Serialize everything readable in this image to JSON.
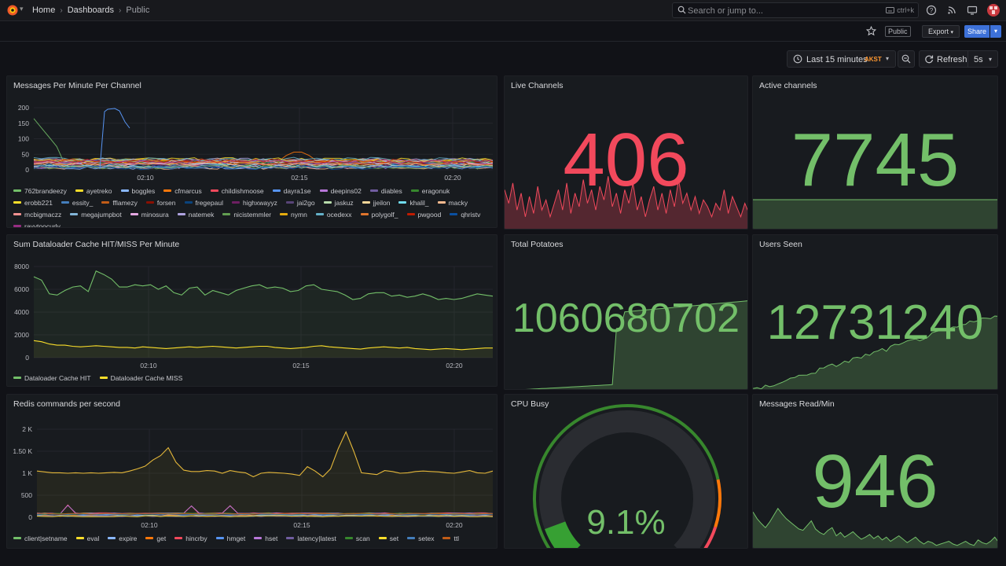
{
  "topbar": {
    "crumbs": [
      "Home",
      "Dashboards",
      "Public"
    ],
    "search_placeholder": "Search or jump to...",
    "search_shortcut": "ctrl+k"
  },
  "toolbar": {
    "public_tag": "Public",
    "export_label": "Export",
    "share_label": "Share"
  },
  "time": {
    "range_label": "Last 15 minutes",
    "timezone": "AKST",
    "refresh_label": "Refresh",
    "refresh_interval": "5s"
  },
  "panels": {
    "messages_per_minute": {
      "title": "Messages Per Minute Per Channel",
      "y_ticks": [
        "200",
        "150",
        "100",
        "50",
        "0"
      ],
      "x_ticks": [
        "02:10",
        "02:15",
        "02:20"
      ],
      "legend": [
        {
          "name": "762brandeezy",
          "color": "#73bf69"
        },
        {
          "name": "ayetreko",
          "color": "#fade2a"
        },
        {
          "name": "boggles",
          "color": "#8ab8ff"
        },
        {
          "name": "cfmarcus",
          "color": "#ff780a"
        },
        {
          "name": "childishmoose",
          "color": "#f2495c"
        },
        {
          "name": "dayra1se",
          "color": "#5794f2"
        },
        {
          "name": "deepins02",
          "color": "#b877d9"
        },
        {
          "name": "diables",
          "color": "#705da0"
        },
        {
          "name": "eragonuk",
          "color": "#37872d"
        },
        {
          "name": "erobb221",
          "color": "#fade2a"
        },
        {
          "name": "essity_",
          "color": "#447ebc"
        },
        {
          "name": "fflamezy",
          "color": "#c15c17"
        },
        {
          "name": "forsen",
          "color": "#890f02"
        },
        {
          "name": "fregepaul",
          "color": "#0a437c"
        },
        {
          "name": "highxwayyz",
          "color": "#6d1f62"
        },
        {
          "name": "jai2go",
          "color": "#584477"
        },
        {
          "name": "jaskuz",
          "color": "#b7dbab"
        },
        {
          "name": "jjeilon",
          "color": "#f4d598"
        },
        {
          "name": "khalil_",
          "color": "#70dbed"
        },
        {
          "name": "macky",
          "color": "#f9ba8f"
        },
        {
          "name": "mcbigmaczz",
          "color": "#f29191"
        },
        {
          "name": "megajumpbot",
          "color": "#82b5d8"
        },
        {
          "name": "minosura",
          "color": "#e5a8e2"
        },
        {
          "name": "natemek",
          "color": "#aea2e0"
        },
        {
          "name": "nicistemmler",
          "color": "#629e51"
        },
        {
          "name": "nymn",
          "color": "#e5ac0e"
        },
        {
          "name": "ocedexx",
          "color": "#64b0c8"
        },
        {
          "name": "polygolf_",
          "color": "#e0752d"
        },
        {
          "name": "pwgood",
          "color": "#bf1b00"
        },
        {
          "name": "qhristv",
          "color": "#0a50a1"
        },
        {
          "name": "rayytoocurly",
          "color": "#962d82"
        }
      ]
    },
    "live_channels": {
      "title": "Live Channels",
      "value": "406",
      "color": "#f2495c"
    },
    "active_channels": {
      "title": "Active channels",
      "value": "7745",
      "color": "#73bf69"
    },
    "dataloader": {
      "title": "Sum Dataloader Cache HIT/MISS Per Minute",
      "y_ticks": [
        "8000",
        "6000",
        "4000",
        "2000",
        "0"
      ],
      "x_ticks": [
        "02:10",
        "02:15",
        "02:20"
      ],
      "legend": [
        {
          "name": "Dataloader Cache HIT",
          "color": "#73bf69"
        },
        {
          "name": "Dataloader Cache MISS",
          "color": "#fade2a"
        }
      ]
    },
    "total_potatoes": {
      "title": "Total Potatoes",
      "value": "1060680702",
      "color": "#73bf69"
    },
    "users_seen": {
      "title": "Users Seen",
      "value": "12731240",
      "color": "#73bf69"
    },
    "redis": {
      "title": "Redis commands per second",
      "y_ticks": [
        "2 K",
        "1.50 K",
        "1 K",
        "500",
        "0"
      ],
      "x_ticks": [
        "02:10",
        "02:15",
        "02:20"
      ],
      "legend": [
        {
          "name": "client|setname",
          "color": "#73bf69"
        },
        {
          "name": "eval",
          "color": "#fade2a"
        },
        {
          "name": "expire",
          "color": "#8ab8ff"
        },
        {
          "name": "get",
          "color": "#ff780a"
        },
        {
          "name": "hincrby",
          "color": "#f2495c"
        },
        {
          "name": "hmget",
          "color": "#5794f2"
        },
        {
          "name": "hset",
          "color": "#b877d9"
        },
        {
          "name": "latency|latest",
          "color": "#705da0"
        },
        {
          "name": "scan",
          "color": "#37872d"
        },
        {
          "name": "set",
          "color": "#fade2a"
        },
        {
          "name": "setex",
          "color": "#447ebc"
        },
        {
          "name": "ttl",
          "color": "#c15c17"
        }
      ]
    },
    "cpu_busy": {
      "title": "CPU Busy",
      "value": "9.1%",
      "percent": 9.1,
      "color": "#73bf69"
    },
    "messages_read": {
      "title": "Messages Read/Min",
      "value": "946",
      "color": "#73bf69"
    }
  }
}
